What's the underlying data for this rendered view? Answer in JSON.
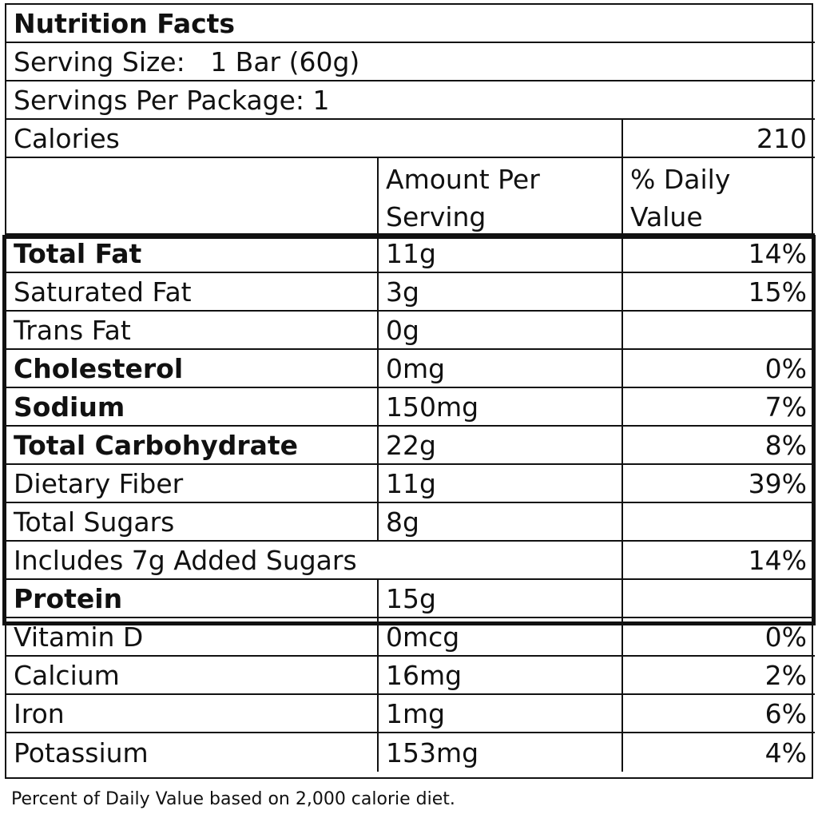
{
  "title": "Nutrition Facts",
  "serving_size": "Serving Size:   1 Bar (60g)",
  "servings_per_package": "Servings Per Package: 1",
  "calories": {
    "label": "Calories",
    "value": "210"
  },
  "header": {
    "amount_col": "Amount Per Serving",
    "dv_col": "% Daily Value"
  },
  "nutrients": [
    {
      "name": "Total Fat",
      "bold": true,
      "amount": "11g",
      "dv": "14%"
    },
    {
      "name": "Saturated Fat",
      "bold": false,
      "amount": "3g",
      "dv": "15%"
    },
    {
      "name": "Trans Fat",
      "bold": false,
      "amount": "0g",
      "dv": ""
    },
    {
      "name": "Cholesterol",
      "bold": true,
      "amount": "0mg",
      "dv": "0%"
    },
    {
      "name": "Sodium",
      "bold": true,
      "amount": "150mg",
      "dv": "7%"
    },
    {
      "name": "Total Carbohydrate",
      "bold": true,
      "amount": "22g",
      "dv": "8%"
    },
    {
      "name": "Dietary Fiber",
      "bold": false,
      "amount": "11g",
      "dv": "39%"
    },
    {
      "name": "Total Sugars",
      "bold": false,
      "amount": "8g",
      "dv": ""
    },
    {
      "name": "Includes 7g Added Sugars",
      "bold": false,
      "amount": "",
      "dv": "14%"
    },
    {
      "name": "Protein",
      "bold": true,
      "amount": "15g",
      "dv": ""
    }
  ],
  "vitamins": [
    {
      "name": "Vitamin D",
      "amount": "0mcg",
      "dv": "0%"
    },
    {
      "name": "Calcium",
      "amount": "16mg",
      "dv": "2%"
    },
    {
      "name": "Iron",
      "amount": "1mg",
      "dv": "6%"
    },
    {
      "name": "Potassium",
      "amount": "153mg",
      "dv": "4%"
    }
  ],
  "footnote": "Percent of Daily Value based on 2,000 calorie diet."
}
